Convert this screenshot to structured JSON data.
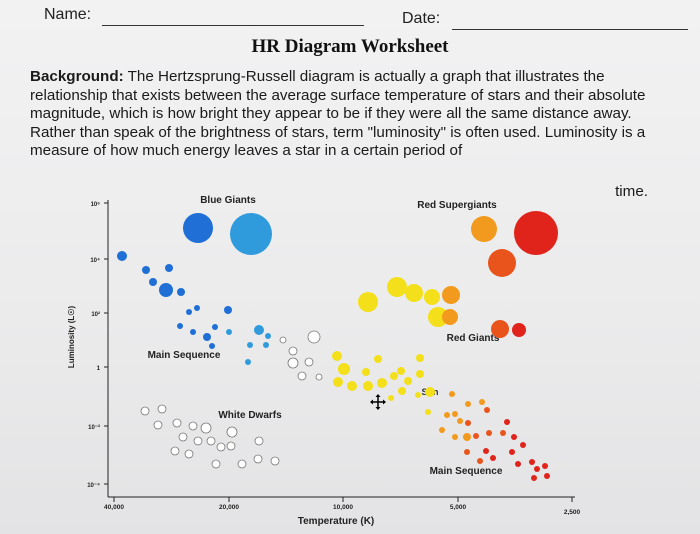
{
  "header": {
    "name_label": "Name:",
    "date_label": "Date:",
    "title": "HR Diagram Worksheet"
  },
  "background": {
    "heading": "Background:",
    "text": " The Hertzsprung-Russell diagram is actually a graph that illustrates the relationship that exists between the average surface temperature of stars and their absolute magnitude, which is how bright they appear to be if they were all the same distance away. Rather than speak of the brightness of stars, term \"luminosity\" is often used. Luminosity is a measure of how much energy leaves a star in a certain period of",
    "last_word": "time."
  },
  "diagram": {
    "ylabel": "Luminosity (L☉)",
    "xlabel": "Temperature (K)",
    "y_ticks": [
      "10⁶",
      "10⁴",
      "10²",
      "1",
      "10⁻²",
      "10⁻⁴"
    ],
    "x_ticks": [
      "40,000",
      "20,000",
      "10,000",
      "5,000",
      "2,500"
    ],
    "labels": {
      "blue_giants": "Blue Giants",
      "red_supergiants": "Red Supergiants",
      "red_giants": "Red Giants",
      "main_sequence_left": "Main Sequence",
      "white_dwarfs": "White Dwarfs",
      "sun": "Sun",
      "main_sequence_right": "Main Sequence"
    },
    "colors": {
      "blue": "#1f6fd6",
      "light_blue": "#2f9bdc",
      "white_dwarf": "#ffffff",
      "yellow": "#f3e01a",
      "orange": "#f29a1d",
      "red_orange": "#e8541c",
      "red": "#e0241b"
    }
  }
}
